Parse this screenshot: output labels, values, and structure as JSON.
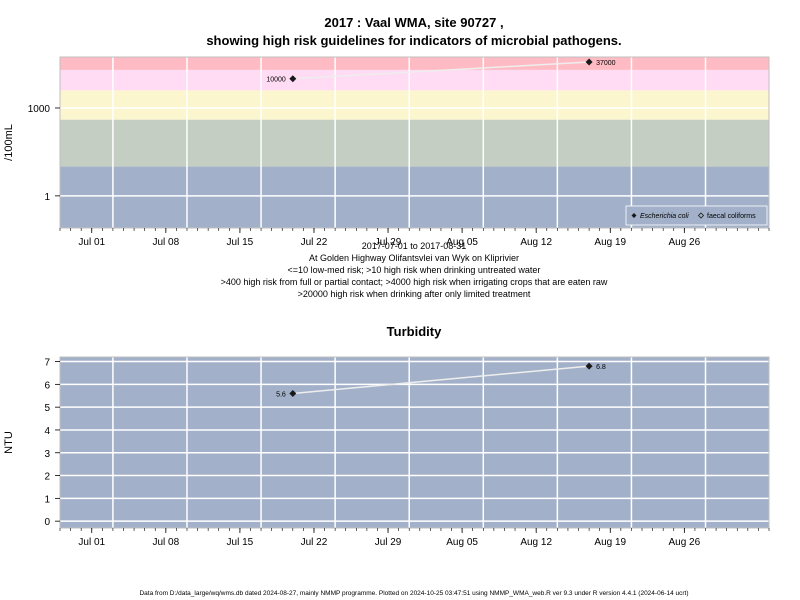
{
  "page_title_line1": "2017 : Vaal WMA, site 90727 ,",
  "page_title_line2": "showing high risk guidelines for indicators of microbial pathogens.",
  "caption_lines": [
    "2017-07-01 to 2017-08-31",
    "At Golden Highway Olifantsvlei van Wyk on Kliprivier",
    "<=10 low-med risk; >10 high risk when drinking untreated water",
    ">400 high risk from full or partial contact; >4000 high risk when irrigating crops that are eaten raw",
    ">20000 high risk when drinking after only limited treatment"
  ],
  "footer": "Data from D:/data_large/wq/wms.db dated 2024-08-27, mainly NMMP programme. Plotted on 2024-10-25 03:47:51 using NMMP_WMA_web.R ver 9.3 under R version 4.4.1 (2024-06-14 ucrt)",
  "chart_data": [
    {
      "type": "scatter",
      "title": "",
      "ylabel": "/100mL",
      "y_scale": "log",
      "x_range": [
        "2017-06-28",
        "2017-09-03"
      ],
      "x_ticks": [
        "Jul 01",
        "Jul 08",
        "Jul 15",
        "Jul 22",
        "Jul 29",
        "Aug 05",
        "Aug 12",
        "Aug 19",
        "Aug 26"
      ],
      "x_tick_dates": [
        "2017-07-01",
        "2017-07-08",
        "2017-07-15",
        "2017-07-22",
        "2017-07-29",
        "2017-08-05",
        "2017-08-12",
        "2017-08-19",
        "2017-08-26"
      ],
      "y_ticks": [
        "1",
        "1000"
      ],
      "y_tick_values": [
        1,
        1000
      ],
      "ylim": [
        0.08,
        55000
      ],
      "risk_bands": [
        {
          "from": 0.08,
          "to": 10,
          "color": "#a2b1c9"
        },
        {
          "from": 10,
          "to": 400,
          "color": "#c4cec3"
        },
        {
          "from": 400,
          "to": 4000,
          "color": "#fcf6cf"
        },
        {
          "from": 4000,
          "to": 20000,
          "color": "#ffdcf3"
        },
        {
          "from": 20000,
          "to": 55000,
          "color": "#ffbbc3"
        }
      ],
      "grid": true,
      "legend_position": "bottom-right",
      "legend": [
        {
          "label": "Escherichia coli",
          "marker": "filled-diamond"
        },
        {
          "label": "faecal coliforms",
          "marker": "open-diamond"
        }
      ],
      "series": [
        {
          "name": "Escherichia coli",
          "x": [
            "2017-07-20",
            "2017-08-17"
          ],
          "y": [
            10000,
            37000
          ],
          "labels": [
            "10000",
            "37000"
          ]
        }
      ]
    },
    {
      "type": "scatter",
      "title": "Turbidity",
      "ylabel": "NTU",
      "x_range": [
        "2017-06-28",
        "2017-09-03"
      ],
      "x_ticks": [
        "Jul 01",
        "Jul 08",
        "Jul 15",
        "Jul 22",
        "Jul 29",
        "Aug 05",
        "Aug 12",
        "Aug 19",
        "Aug 26"
      ],
      "x_tick_dates": [
        "2017-07-01",
        "2017-07-08",
        "2017-07-15",
        "2017-07-22",
        "2017-07-29",
        "2017-08-05",
        "2017-08-12",
        "2017-08-19",
        "2017-08-26"
      ],
      "y_ticks": [
        "0",
        "1",
        "2",
        "3",
        "4",
        "5",
        "6",
        "7"
      ],
      "y_tick_values": [
        0,
        1,
        2,
        3,
        4,
        5,
        6,
        7
      ],
      "ylim": [
        -0.3,
        7.2
      ],
      "background": "#a2b1c9",
      "grid": true,
      "series": [
        {
          "name": "",
          "x": [
            "2017-07-20",
            "2017-08-17"
          ],
          "y": [
            5.6,
            6.8
          ],
          "labels": [
            "5.6",
            "6.8"
          ]
        }
      ]
    }
  ]
}
